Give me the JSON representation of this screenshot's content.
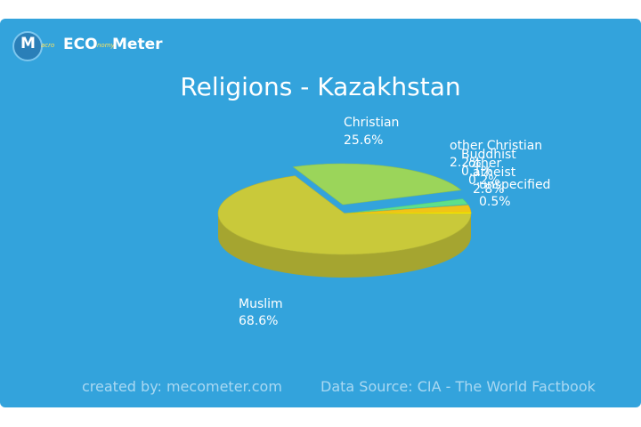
{
  "brand": {
    "logo_m": "M",
    "logo_small_1": "acro",
    "logo_eco": "ECO",
    "logo_small_2": "nomy",
    "logo_meter": "Meter"
  },
  "footer": {
    "created_by": "created by: mecometer.com",
    "data_source": "Data Source: CIA - The World Factbook"
  },
  "chart_data": {
    "type": "pie",
    "title": "Religions - Kazakhstan",
    "slices": [
      {
        "label": "Muslim",
        "value": 68.6,
        "display": "68.6%",
        "color": "#c9c93a"
      },
      {
        "label": "Christian",
        "value": 25.6,
        "display": "25.6%",
        "color": "#9bd55a"
      },
      {
        "label": "other Christian",
        "value": 2.2,
        "display": "2.2%",
        "color": "#5ee08a"
      },
      {
        "label": "Buddhist",
        "value": 0.1,
        "display": "0.1%",
        "color": "#4ed7b8"
      },
      {
        "label": "other",
        "value": 0.2,
        "display": "0.2%",
        "color": "#45c8e0"
      },
      {
        "label": "atheist",
        "value": 2.8,
        "display": "2.8%",
        "color": "#f0c419"
      },
      {
        "label": "unspecified",
        "value": 0.5,
        "display": "0.5%",
        "color": "#ffee00"
      }
    ]
  }
}
